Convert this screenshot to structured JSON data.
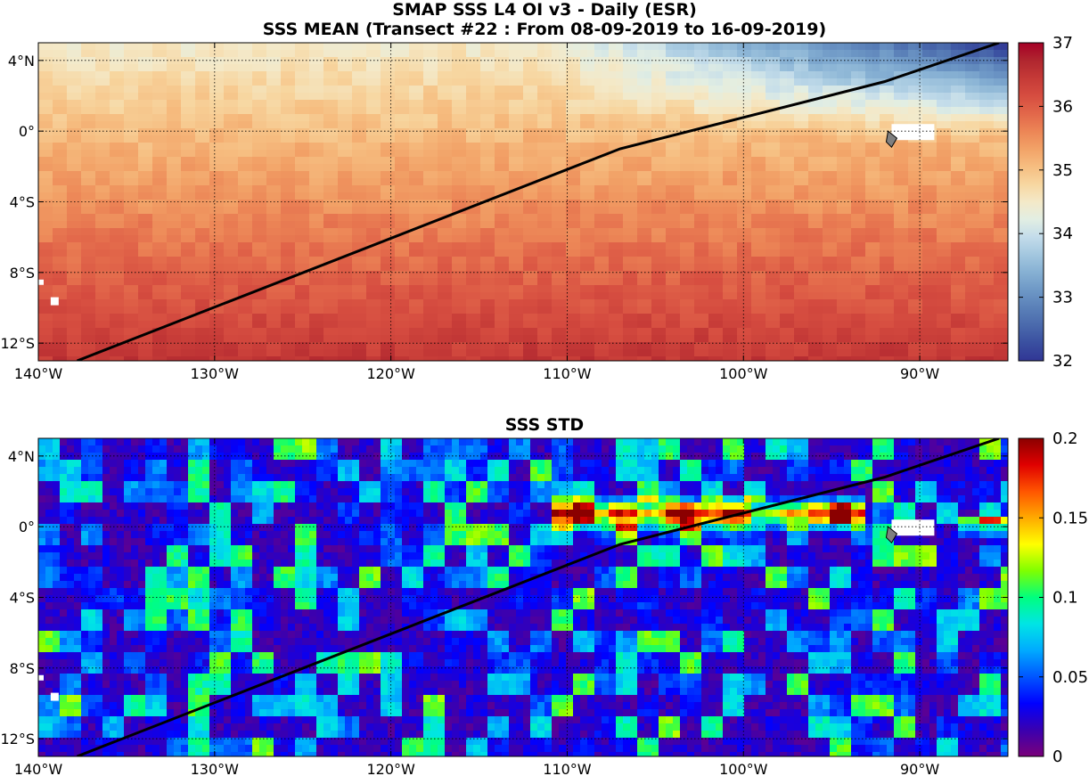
{
  "titles": {
    "line1": "SMAP SSS L4 OI v3 - Daily (ESR)",
    "line2": "SSS MEAN (Transect #22 : From 08-09-2019 to 16-09-2019)",
    "panel2": "SSS STD"
  },
  "map": {
    "lon_range": [
      -140,
      -85
    ],
    "lat_range": [
      -13,
      5
    ],
    "x_ticks": [
      {
        "lon": -140,
        "label": "140°W"
      },
      {
        "lon": -130,
        "label": "130°W"
      },
      {
        "lon": -120,
        "label": "120°W"
      },
      {
        "lon": -110,
        "label": "110°W"
      },
      {
        "lon": -100,
        "label": "100°W"
      },
      {
        "lon": -90,
        "label": "90°W"
      }
    ],
    "y_ticks": [
      {
        "lat": 4,
        "label": "4°N"
      },
      {
        "lat": 0,
        "label": "0°"
      },
      {
        "lat": -4,
        "label": "4°S"
      },
      {
        "lat": -8,
        "label": "8°S"
      },
      {
        "lat": -12,
        "label": "12°S"
      }
    ],
    "transect": [
      [
        -137.8,
        -13
      ],
      [
        -107,
        -1
      ],
      [
        -92,
        2.8
      ],
      [
        -85.5,
        5
      ]
    ],
    "land_color": "#808080"
  },
  "colorbar_mean": {
    "range": [
      32,
      37
    ],
    "ticks": [
      32,
      33,
      34,
      35,
      36,
      37
    ],
    "tick_labels": [
      "32",
      "33",
      "34",
      "35",
      "36",
      "37"
    ],
    "colors": [
      "#313695",
      "#3a4fa0",
      "#4a69ac",
      "#5a80b8",
      "#6e98c6",
      "#86b0d3",
      "#a3c7df",
      "#c3dcea",
      "#e2eee3",
      "#f4e9c8",
      "#f7d6a0",
      "#f6bd80",
      "#f2a267",
      "#ec8556",
      "#e2674a",
      "#d64d40",
      "#c53a37",
      "#b0262f",
      "#a50026"
    ]
  },
  "colorbar_std": {
    "range": [
      0,
      0.2
    ],
    "ticks": [
      0,
      0.05,
      0.1,
      0.15,
      0.2
    ],
    "tick_labels": [
      "0",
      "0.05",
      "0.1",
      "0.15",
      "0.2"
    ],
    "colors": [
      "#7a007a",
      "#3a00b0",
      "#0000ff",
      "#0055ff",
      "#00aaff",
      "#00e5e5",
      "#00ff7f",
      "#7fff00",
      "#ffff00",
      "#ffaa00",
      "#ff5500",
      "#e00000",
      "#8b0000"
    ]
  }
}
